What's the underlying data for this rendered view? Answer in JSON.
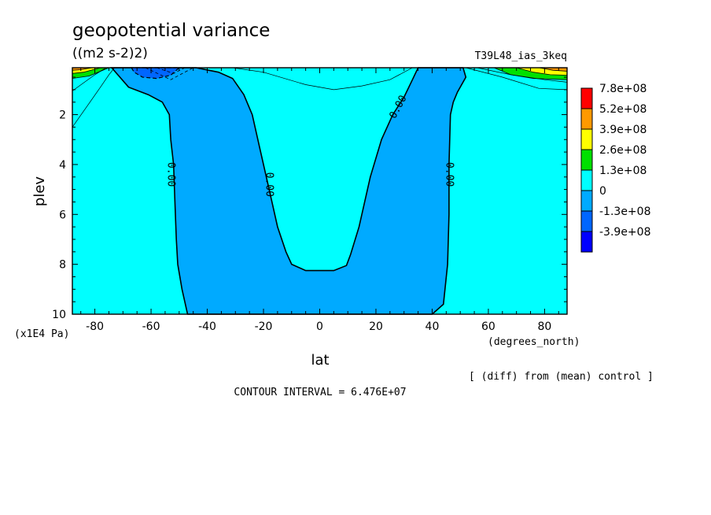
{
  "chart_data": {
    "type": "contour",
    "title": "geopotential variance",
    "units": "((m2 s-2)2)",
    "run_label": "T39L48_ias_3keq",
    "xlabel": "lat",
    "x_units": "(degrees_north)",
    "ylabel": "plev",
    "y_units": "(x1E4 Pa)",
    "xlim": [
      -88,
      88
    ],
    "ylim": [
      10,
      0
    ],
    "x_ticks": [
      -80,
      -60,
      -40,
      -20,
      0,
      20,
      40,
      60,
      80
    ],
    "y_ticks": [
      2,
      4,
      6,
      8,
      10
    ],
    "y_scale_note": "top of axis ≈ 0.1 (model top)",
    "contour_interval_text": "CONTOUR INTERVAL = 6.476E+07",
    "diff_note": "[ (diff) from (mean) control ]",
    "contour_labels": [
      {
        "text": "0.00",
        "x": -53,
        "y": 4.4
      },
      {
        "text": "0.00",
        "x": -18,
        "y": 4.8
      },
      {
        "text": "0.00",
        "x": 28,
        "y": 1.7
      },
      {
        "text": "0.00",
        "x": 46,
        "y": 4.4
      }
    ],
    "legend": [
      {
        "label": "7.8e+08",
        "color": "#ff0000"
      },
      {
        "label": "5.2e+08",
        "color": "#ff9900"
      },
      {
        "label": "3.9e+08",
        "color": "#ffff00"
      },
      {
        "label": "2.6e+08",
        "color": "#00e000"
      },
      {
        "label": "1.3e+08",
        "color": "#00ffff"
      },
      {
        "label": "0",
        "color": "#00aaff"
      },
      {
        "label": "-1.3e+08",
        "color": "#0066ff"
      },
      {
        "label": "-3.9e+08",
        "color": "#0000ff"
      }
    ],
    "fill_colors": {
      "background": "#00ffff",
      "negative": "#00aaff",
      "deep_negative": "#0066ff",
      "green": "#00e000",
      "yellow": "#ffff00",
      "orange": "#ff9900"
    },
    "negative_region_outline": [
      [
        -74,
        0.12
      ],
      [
        -68,
        0.9
      ],
      [
        -61,
        1.2
      ],
      [
        -56,
        1.5
      ],
      [
        -53.5,
        2.0
      ],
      [
        -53,
        3.0
      ],
      [
        -52,
        4.0
      ],
      [
        -51.5,
        5.5
      ],
      [
        -51,
        7.0
      ],
      [
        -50.5,
        8.0
      ],
      [
        -49,
        9.0
      ],
      [
        -47,
        10.0
      ],
      [
        40,
        10.0
      ],
      [
        44,
        9.6
      ],
      [
        45.5,
        8.0
      ],
      [
        46,
        6.0
      ],
      [
        46,
        4.0
      ],
      [
        46.5,
        2.0
      ],
      [
        47.5,
        1.5
      ],
      [
        49,
        1.1
      ],
      [
        52,
        0.5
      ],
      [
        51,
        0.12
      ],
      [
        35,
        0.12
      ],
      [
        33,
        0.6
      ],
      [
        30,
        1.3
      ],
      [
        26,
        2.0
      ],
      [
        22,
        3.0
      ],
      [
        18,
        4.5
      ],
      [
        14,
        6.5
      ],
      [
        11,
        7.6
      ],
      [
        9.5,
        8.05
      ],
      [
        5,
        8.25
      ],
      [
        -5,
        8.25
      ],
      [
        -10,
        8.0
      ],
      [
        -12,
        7.5
      ],
      [
        -15,
        6.5
      ],
      [
        -18,
        5.0
      ],
      [
        -21,
        3.5
      ],
      [
        -24,
        2.0
      ],
      [
        -27,
        1.2
      ],
      [
        -31,
        0.55
      ],
      [
        -36,
        0.3
      ],
      [
        -44,
        0.12
      ]
    ],
    "deep_negative_region_outline": [
      [
        -67,
        0.12
      ],
      [
        -66,
        0.3
      ],
      [
        -63,
        0.5
      ],
      [
        -58,
        0.55
      ],
      [
        -53,
        0.42
      ],
      [
        -50,
        0.12
      ]
    ],
    "nh_upper_levels": [
      {
        "color": "#00e000",
        "outline": [
          [
            88,
            0.12
          ],
          [
            62,
            0.12
          ],
          [
            68,
            0.4
          ],
          [
            76,
            0.55
          ],
          [
            88,
            0.6
          ]
        ]
      },
      {
        "color": "#ffff00",
        "outline": [
          [
            88,
            0.12
          ],
          [
            70,
            0.12
          ],
          [
            76,
            0.3
          ],
          [
            82,
            0.4
          ],
          [
            88,
            0.42
          ]
        ]
      },
      {
        "color": "#ff9900",
        "outline": [
          [
            88,
            0.12
          ],
          [
            78,
            0.12
          ],
          [
            83,
            0.22
          ],
          [
            88,
            0.26
          ]
        ]
      }
    ],
    "sh_upper_levels": [
      {
        "color": "#00e000",
        "outline": [
          [
            -88,
            0.12
          ],
          [
            -75,
            0.12
          ],
          [
            -82,
            0.45
          ],
          [
            -88,
            0.55
          ]
        ]
      },
      {
        "color": "#ffff00",
        "outline": [
          [
            -88,
            0.12
          ],
          [
            -78,
            0.12
          ],
          [
            -84,
            0.3
          ],
          [
            -88,
            0.35
          ]
        ]
      },
      {
        "color": "#ff9900",
        "outline": [
          [
            -88,
            0.12
          ],
          [
            -81,
            0.12
          ],
          [
            -85,
            0.2
          ],
          [
            -88,
            0.22
          ]
        ]
      }
    ],
    "thin_contours": [
      [
        [
          -88,
          2.5
        ],
        [
          -83,
          1.7
        ],
        [
          -78,
          0.9
        ],
        [
          -75,
          0.4
        ],
        [
          -73,
          0.12
        ]
      ],
      [
        [
          -88,
          1.05
        ],
        [
          -80,
          0.4
        ],
        [
          -76,
          0.12
        ]
      ],
      [
        [
          -31,
          0.12
        ],
        [
          -20,
          0.3
        ],
        [
          -5,
          0.8
        ],
        [
          5,
          1.0
        ],
        [
          15,
          0.85
        ],
        [
          25,
          0.6
        ],
        [
          33,
          0.12
        ]
      ],
      [
        [
          52,
          0.12
        ],
        [
          65,
          0.5
        ],
        [
          78,
          0.95
        ],
        [
          88,
          1.0
        ]
      ],
      [
        [
          56,
          0.12
        ],
        [
          68,
          0.4
        ],
        [
          80,
          0.6
        ],
        [
          88,
          0.7
        ]
      ]
    ],
    "dashed_contours": [
      [
        [
          -62,
          0.12
        ],
        [
          -53,
          0.6
        ],
        [
          -45,
          0.12
        ]
      ],
      [
        [
          -58,
          0.12
        ],
        [
          -52,
          0.35
        ],
        [
          -48,
          0.12
        ]
      ]
    ]
  }
}
